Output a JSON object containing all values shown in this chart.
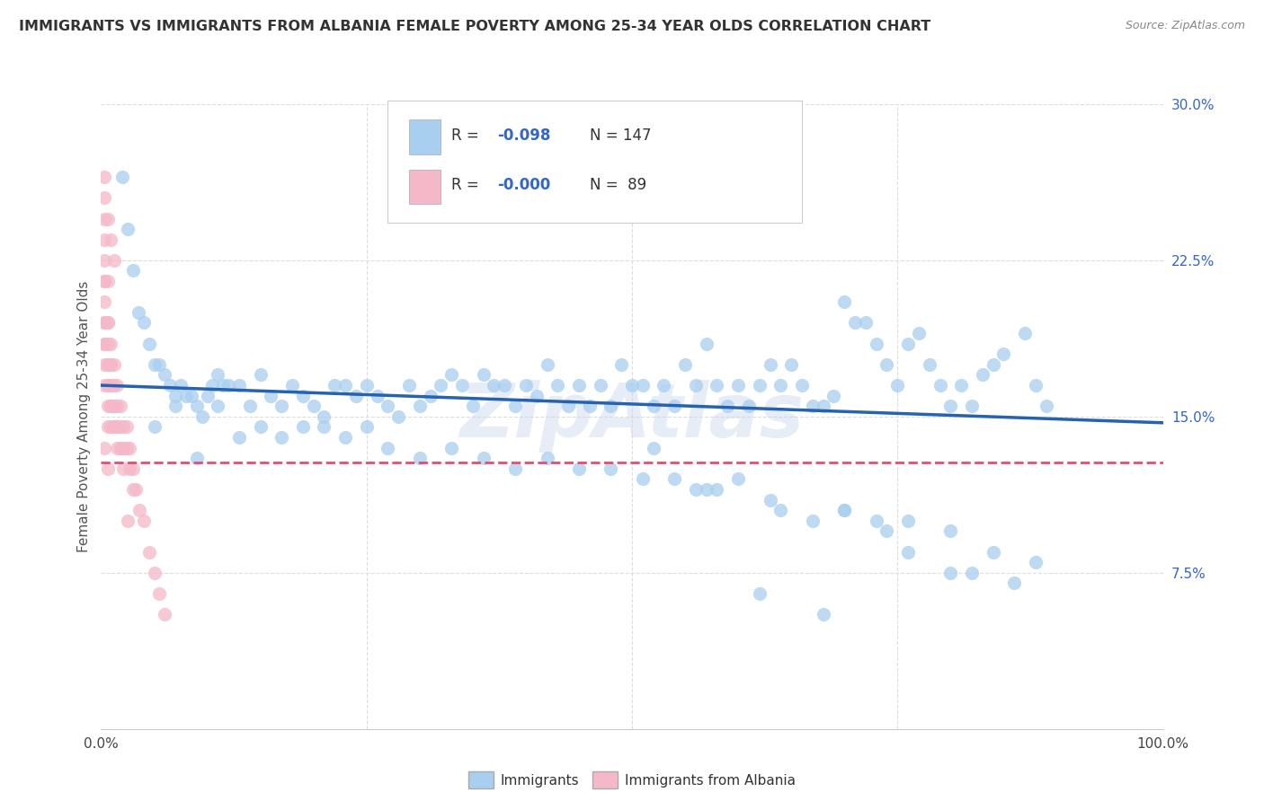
{
  "title": "IMMIGRANTS VS IMMIGRANTS FROM ALBANIA FEMALE POVERTY AMONG 25-34 YEAR OLDS CORRELATION CHART",
  "source": "Source: ZipAtlas.com",
  "ylabel": "Female Poverty Among 25-34 Year Olds",
  "xlim": [
    0,
    1.0
  ],
  "ylim": [
    0,
    0.3
  ],
  "blue_color": "#A8CEF0",
  "pink_color": "#F5B8C8",
  "blue_line_color": "#2563B0",
  "pink_line_color": "#E05070",
  "grid_color": "#DDDDDD",
  "legend_r1_label": "R = ",
  "legend_r1_val": "-0.098",
  "legend_n1": "N = 147",
  "legend_r2_label": "R = ",
  "legend_r2_val": "-0.000",
  "legend_n2": "N =  89",
  "watermark": "ZipAtlas",
  "blue_trend_x": [
    0.0,
    1.0
  ],
  "blue_trend_y": [
    0.165,
    0.147
  ],
  "pink_trend_x": [
    0.0,
    1.0
  ],
  "pink_trend_y": [
    0.128,
    0.128
  ],
  "blue_scatter_x": [
    0.02,
    0.025,
    0.03,
    0.035,
    0.04,
    0.045,
    0.05,
    0.055,
    0.06,
    0.065,
    0.07,
    0.075,
    0.08,
    0.085,
    0.09,
    0.095,
    0.1,
    0.105,
    0.11,
    0.115,
    0.12,
    0.13,
    0.14,
    0.15,
    0.16,
    0.17,
    0.18,
    0.19,
    0.2,
    0.21,
    0.22,
    0.23,
    0.24,
    0.25,
    0.26,
    0.27,
    0.28,
    0.29,
    0.3,
    0.31,
    0.32,
    0.33,
    0.34,
    0.35,
    0.36,
    0.37,
    0.38,
    0.39,
    0.4,
    0.41,
    0.42,
    0.43,
    0.44,
    0.45,
    0.46,
    0.47,
    0.48,
    0.49,
    0.5,
    0.51,
    0.52,
    0.53,
    0.54,
    0.55,
    0.56,
    0.57,
    0.58,
    0.59,
    0.6,
    0.61,
    0.62,
    0.63,
    0.64,
    0.65,
    0.66,
    0.67,
    0.68,
    0.69,
    0.7,
    0.71,
    0.72,
    0.73,
    0.74,
    0.75,
    0.76,
    0.77,
    0.78,
    0.79,
    0.8,
    0.81,
    0.82,
    0.83,
    0.84,
    0.85,
    0.87,
    0.88,
    0.89,
    0.05,
    0.07,
    0.09,
    0.11,
    0.13,
    0.15,
    0.17,
    0.19,
    0.21,
    0.23,
    0.25,
    0.27,
    0.3,
    0.33,
    0.36,
    0.39,
    0.42,
    0.45,
    0.48,
    0.51,
    0.54,
    0.57,
    0.6,
    0.63,
    0.67,
    0.7,
    0.73,
    0.76,
    0.8,
    0.84,
    0.88,
    0.56,
    0.62,
    0.68,
    0.74,
    0.8,
    0.86,
    0.52,
    0.58,
    0.64,
    0.7,
    0.76,
    0.82
  ],
  "blue_scatter_y": [
    0.265,
    0.24,
    0.22,
    0.2,
    0.195,
    0.185,
    0.175,
    0.175,
    0.17,
    0.165,
    0.16,
    0.165,
    0.16,
    0.16,
    0.155,
    0.15,
    0.16,
    0.165,
    0.17,
    0.165,
    0.165,
    0.165,
    0.155,
    0.17,
    0.16,
    0.155,
    0.165,
    0.16,
    0.155,
    0.15,
    0.165,
    0.165,
    0.16,
    0.165,
    0.16,
    0.155,
    0.15,
    0.165,
    0.155,
    0.16,
    0.165,
    0.17,
    0.165,
    0.155,
    0.17,
    0.165,
    0.165,
    0.155,
    0.165,
    0.16,
    0.175,
    0.165,
    0.155,
    0.165,
    0.155,
    0.165,
    0.155,
    0.175,
    0.165,
    0.165,
    0.155,
    0.165,
    0.155,
    0.175,
    0.165,
    0.185,
    0.165,
    0.155,
    0.165,
    0.155,
    0.165,
    0.175,
    0.165,
    0.175,
    0.165,
    0.155,
    0.155,
    0.16,
    0.205,
    0.195,
    0.195,
    0.185,
    0.175,
    0.165,
    0.185,
    0.19,
    0.175,
    0.165,
    0.155,
    0.165,
    0.155,
    0.17,
    0.175,
    0.18,
    0.19,
    0.165,
    0.155,
    0.145,
    0.155,
    0.13,
    0.155,
    0.14,
    0.145,
    0.14,
    0.145,
    0.145,
    0.14,
    0.145,
    0.135,
    0.13,
    0.135,
    0.13,
    0.125,
    0.13,
    0.125,
    0.125,
    0.12,
    0.12,
    0.115,
    0.12,
    0.11,
    0.1,
    0.105,
    0.1,
    0.1,
    0.095,
    0.085,
    0.08,
    0.115,
    0.065,
    0.055,
    0.095,
    0.075,
    0.07,
    0.135,
    0.115,
    0.105,
    0.105,
    0.085,
    0.075
  ],
  "pink_scatter_x": [
    0.003,
    0.003,
    0.003,
    0.003,
    0.003,
    0.003,
    0.003,
    0.006,
    0.006,
    0.006,
    0.006,
    0.006,
    0.006,
    0.009,
    0.009,
    0.009,
    0.009,
    0.009,
    0.012,
    0.012,
    0.012,
    0.012,
    0.015,
    0.015,
    0.015,
    0.018,
    0.018,
    0.018,
    0.021,
    0.021,
    0.024,
    0.024,
    0.027,
    0.027,
    0.03,
    0.03,
    0.033,
    0.036,
    0.04,
    0.045,
    0.05,
    0.055,
    0.06,
    0.003,
    0.003,
    0.003,
    0.003,
    0.003,
    0.006,
    0.006,
    0.006,
    0.006,
    0.009,
    0.009,
    0.009,
    0.012,
    0.012,
    0.015,
    0.015,
    0.018,
    0.021,
    0.025,
    0.003,
    0.003,
    0.006,
    0.009,
    0.012,
    0.003,
    0.006
  ],
  "pink_scatter_y": [
    0.265,
    0.235,
    0.215,
    0.195,
    0.185,
    0.175,
    0.165,
    0.215,
    0.195,
    0.175,
    0.165,
    0.155,
    0.145,
    0.185,
    0.175,
    0.165,
    0.155,
    0.145,
    0.175,
    0.165,
    0.155,
    0.145,
    0.165,
    0.155,
    0.145,
    0.155,
    0.145,
    0.135,
    0.145,
    0.135,
    0.145,
    0.135,
    0.135,
    0.125,
    0.125,
    0.115,
    0.115,
    0.105,
    0.1,
    0.085,
    0.075,
    0.065,
    0.055,
    0.225,
    0.215,
    0.205,
    0.195,
    0.185,
    0.195,
    0.185,
    0.175,
    0.165,
    0.175,
    0.165,
    0.155,
    0.155,
    0.145,
    0.145,
    0.135,
    0.135,
    0.125,
    0.1,
    0.255,
    0.245,
    0.245,
    0.235,
    0.225,
    0.135,
    0.125
  ]
}
